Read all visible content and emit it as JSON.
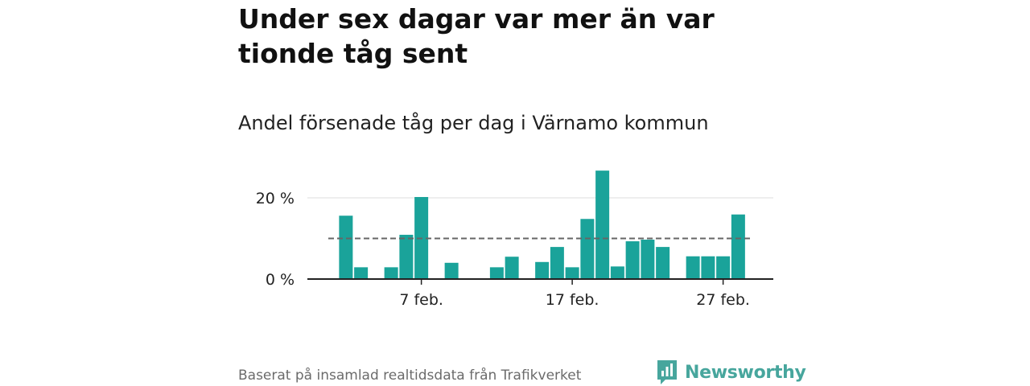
{
  "title": "Under sex dagar var mer än var tionde tåg sent",
  "subtitle": "Andel försenade tåg per dag i Värnamo kommun",
  "source": "Baserat på insamlad realtidsdata från Trafikverket",
  "brand": {
    "name": "Newsworthy",
    "color": "#47a69d"
  },
  "colors": {
    "bar": "#1aa39a",
    "reference_line": "#666666",
    "grid": "#dddddd",
    "axis": "#222222"
  },
  "chart_data": {
    "type": "bar",
    "title": "Andel försenade tåg per dag i Värnamo kommun",
    "xlabel": "",
    "ylabel": "",
    "x": [
      "2 feb.",
      "3 feb.",
      "4 feb.",
      "5 feb.",
      "6 feb.",
      "7 feb.",
      "8 feb.",
      "9 feb.",
      "10 feb.",
      "11 feb.",
      "12 feb.",
      "13 feb.",
      "14 feb.",
      "15 feb.",
      "16 feb.",
      "17 feb.",
      "18 feb.",
      "19 feb.",
      "20 feb.",
      "21 feb.",
      "22 feb.",
      "23 feb.",
      "24 feb.",
      "25 feb.",
      "26 feb.",
      "27 feb.",
      "28 feb."
    ],
    "values": [
      15.6,
      2.9,
      0,
      2.9,
      10.9,
      20.2,
      0,
      4.0,
      0,
      0,
      2.9,
      5.5,
      0,
      4.2,
      7.9,
      2.9,
      14.8,
      26.7,
      3.1,
      9.3,
      9.7,
      7.9,
      0,
      5.6,
      5.6,
      5.6,
      15.9
    ],
    "reference_line": 10,
    "x_ticks": [
      "7 feb.",
      "17 feb.",
      "27 feb."
    ],
    "y_ticks": [
      0,
      20
    ],
    "y_tick_labels": [
      "0 %",
      "20 %"
    ],
    "ylim": [
      0,
      27.5
    ],
    "grid": true,
    "legend": "none"
  }
}
